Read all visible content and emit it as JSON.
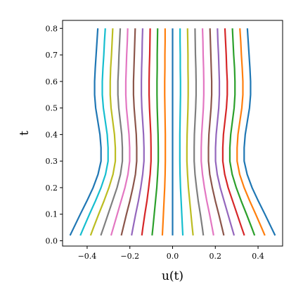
{
  "chart_data": {
    "type": "line",
    "title": "",
    "xlabel": "u(t)",
    "ylabel": "t",
    "xlim": [
      -0.515,
      0.515
    ],
    "ylim": [
      -0.02,
      0.83
    ],
    "xticks": [
      -0.4,
      -0.2,
      0.0,
      0.2,
      0.4
    ],
    "xtick_labels": [
      "−0.4",
      "−0.2",
      "0.0",
      "0.2",
      "0.4"
    ],
    "yticks": [
      0.0,
      0.1,
      0.2,
      0.3,
      0.4,
      0.5,
      0.6,
      0.7,
      0.8
    ],
    "ytick_labels": [
      "0.0",
      "0.1",
      "0.2",
      "0.3",
      "0.4",
      "0.5",
      "0.6",
      "0.7",
      "0.8"
    ],
    "grid": false,
    "legend": false,
    "t_samples": [
      0.02,
      0.05,
      0.1,
      0.15,
      0.2,
      0.25,
      0.3,
      0.35,
      0.4,
      0.45,
      0.5,
      0.55,
      0.6,
      0.65,
      0.7,
      0.75,
      0.8
    ],
    "series": [
      {
        "color": "#1f77b4",
        "u": [
          -0.48,
          -0.462,
          -0.432,
          -0.401,
          -0.372,
          -0.349,
          -0.335,
          -0.335,
          -0.34,
          -0.35,
          -0.36,
          -0.365,
          -0.365,
          -0.362,
          -0.358,
          -0.354,
          -0.35
        ]
      },
      {
        "color": "#17becf",
        "u": [
          -0.432,
          -0.416,
          -0.389,
          -0.361,
          -0.335,
          -0.314,
          -0.302,
          -0.302,
          -0.306,
          -0.315,
          -0.324,
          -0.329,
          -0.329,
          -0.326,
          -0.322,
          -0.319,
          -0.315
        ]
      },
      {
        "color": "#bcbd22",
        "u": [
          -0.384,
          -0.37,
          -0.346,
          -0.321,
          -0.298,
          -0.279,
          -0.268,
          -0.268,
          -0.272,
          -0.28,
          -0.288,
          -0.292,
          -0.292,
          -0.29,
          -0.286,
          -0.283,
          -0.28
        ]
      },
      {
        "color": "#7f7f7f",
        "u": [
          -0.336,
          -0.323,
          -0.302,
          -0.281,
          -0.26,
          -0.244,
          -0.235,
          -0.235,
          -0.238,
          -0.245,
          -0.252,
          -0.256,
          -0.256,
          -0.253,
          -0.251,
          -0.248,
          -0.245
        ]
      },
      {
        "color": "#e377c2",
        "u": [
          -0.288,
          -0.277,
          -0.259,
          -0.241,
          -0.223,
          -0.209,
          -0.201,
          -0.201,
          -0.204,
          -0.21,
          -0.216,
          -0.219,
          -0.219,
          -0.217,
          -0.215,
          -0.212,
          -0.21
        ]
      },
      {
        "color": "#8c564b",
        "u": [
          -0.24,
          -0.231,
          -0.216,
          -0.2,
          -0.186,
          -0.174,
          -0.168,
          -0.168,
          -0.17,
          -0.175,
          -0.18,
          -0.183,
          -0.183,
          -0.181,
          -0.179,
          -0.177,
          -0.175
        ]
      },
      {
        "color": "#9467bd",
        "u": [
          -0.192,
          -0.185,
          -0.173,
          -0.16,
          -0.149,
          -0.14,
          -0.134,
          -0.134,
          -0.136,
          -0.14,
          -0.144,
          -0.146,
          -0.146,
          -0.145,
          -0.143,
          -0.142,
          -0.14
        ]
      },
      {
        "color": "#d62728",
        "u": [
          -0.144,
          -0.139,
          -0.13,
          -0.12,
          -0.112,
          -0.105,
          -0.101,
          -0.101,
          -0.102,
          -0.105,
          -0.108,
          -0.11,
          -0.11,
          -0.109,
          -0.107,
          -0.106,
          -0.105
        ]
      },
      {
        "color": "#2ca02c",
        "u": [
          -0.096,
          -0.092,
          -0.086,
          -0.08,
          -0.074,
          -0.07,
          -0.067,
          -0.067,
          -0.068,
          -0.07,
          -0.072,
          -0.073,
          -0.073,
          -0.072,
          -0.072,
          -0.071,
          -0.07
        ]
      },
      {
        "color": "#ff7f0e",
        "u": [
          -0.048,
          -0.046,
          -0.043,
          -0.04,
          -0.037,
          -0.035,
          -0.034,
          -0.034,
          -0.034,
          -0.035,
          -0.036,
          -0.037,
          -0.037,
          -0.036,
          -0.036,
          -0.035,
          -0.035
        ]
      },
      {
        "color": "#1f77b4",
        "u": [
          0.0,
          0.0,
          0.0,
          0.0,
          0.0,
          0.0,
          0.0,
          0.0,
          0.0,
          0.0,
          0.0,
          0.0,
          0.0,
          0.0,
          0.0,
          0.0,
          0.0
        ]
      },
      {
        "color": "#17becf",
        "u": [
          0.048,
          0.046,
          0.043,
          0.04,
          0.037,
          0.035,
          0.034,
          0.034,
          0.034,
          0.035,
          0.036,
          0.037,
          0.037,
          0.036,
          0.036,
          0.035,
          0.035
        ]
      },
      {
        "color": "#bcbd22",
        "u": [
          0.096,
          0.092,
          0.086,
          0.08,
          0.074,
          0.07,
          0.067,
          0.067,
          0.068,
          0.07,
          0.072,
          0.073,
          0.073,
          0.072,
          0.072,
          0.071,
          0.07
        ]
      },
      {
        "color": "#7f7f7f",
        "u": [
          0.144,
          0.139,
          0.13,
          0.12,
          0.112,
          0.105,
          0.101,
          0.101,
          0.102,
          0.105,
          0.108,
          0.11,
          0.11,
          0.109,
          0.107,
          0.106,
          0.105
        ]
      },
      {
        "color": "#e377c2",
        "u": [
          0.192,
          0.185,
          0.173,
          0.16,
          0.149,
          0.14,
          0.134,
          0.134,
          0.136,
          0.14,
          0.144,
          0.146,
          0.146,
          0.145,
          0.143,
          0.142,
          0.14
        ]
      },
      {
        "color": "#8c564b",
        "u": [
          0.24,
          0.231,
          0.216,
          0.2,
          0.186,
          0.174,
          0.168,
          0.168,
          0.17,
          0.175,
          0.18,
          0.183,
          0.183,
          0.181,
          0.179,
          0.177,
          0.175
        ]
      },
      {
        "color": "#9467bd",
        "u": [
          0.288,
          0.277,
          0.259,
          0.241,
          0.223,
          0.209,
          0.201,
          0.201,
          0.204,
          0.21,
          0.216,
          0.219,
          0.219,
          0.217,
          0.215,
          0.212,
          0.21
        ]
      },
      {
        "color": "#d62728",
        "u": [
          0.336,
          0.323,
          0.302,
          0.281,
          0.26,
          0.244,
          0.235,
          0.235,
          0.238,
          0.245,
          0.252,
          0.256,
          0.256,
          0.253,
          0.251,
          0.248,
          0.245
        ]
      },
      {
        "color": "#2ca02c",
        "u": [
          0.384,
          0.37,
          0.346,
          0.321,
          0.298,
          0.279,
          0.268,
          0.268,
          0.272,
          0.28,
          0.288,
          0.292,
          0.292,
          0.29,
          0.286,
          0.283,
          0.28
        ]
      },
      {
        "color": "#ff7f0e",
        "u": [
          0.432,
          0.416,
          0.389,
          0.361,
          0.335,
          0.314,
          0.302,
          0.302,
          0.306,
          0.315,
          0.324,
          0.329,
          0.329,
          0.326,
          0.322,
          0.319,
          0.315
        ]
      },
      {
        "color": "#1f77b4",
        "u": [
          0.48,
          0.462,
          0.432,
          0.401,
          0.372,
          0.349,
          0.335,
          0.335,
          0.34,
          0.35,
          0.36,
          0.365,
          0.365,
          0.362,
          0.358,
          0.354,
          0.35
        ]
      }
    ]
  }
}
